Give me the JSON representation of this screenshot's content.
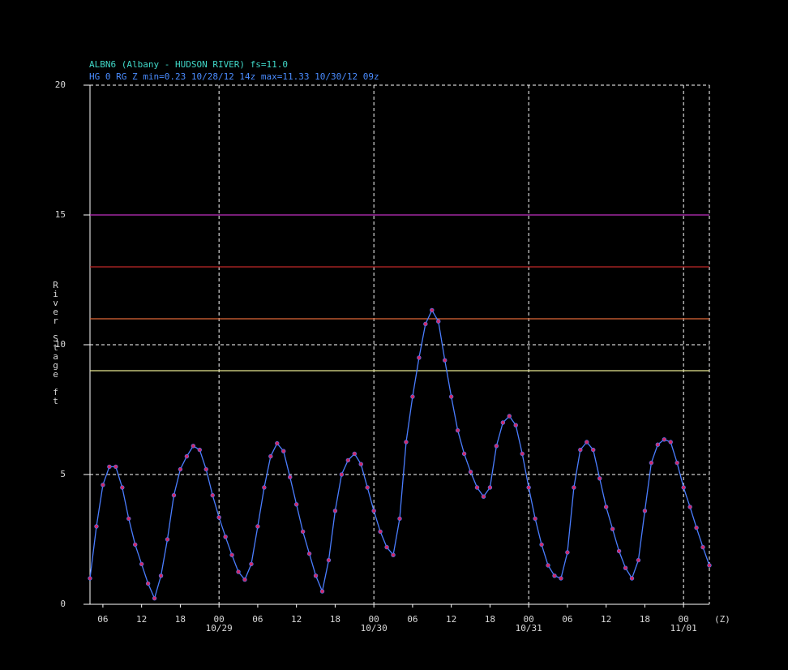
{
  "chart_data": {
    "type": "line",
    "title": "ALBN6 (Albany - HUDSON RIVER) fs=11.0",
    "subtitle": "HG 0 RG Z min=0.23 10/28/12 14z max=11.33 10/30/12 09z",
    "y_label": "River Stage ft",
    "x_unit": "(Z)",
    "xlim": [
      4,
      100
    ],
    "ylim": [
      0,
      20
    ],
    "yticks": [
      0,
      5,
      10,
      15,
      20
    ],
    "xticks": [
      {
        "value": 6,
        "label": "06"
      },
      {
        "value": 12,
        "label": "12"
      },
      {
        "value": 18,
        "label": "18"
      },
      {
        "value": 24,
        "label": "00"
      },
      {
        "value": 30,
        "label": "06"
      },
      {
        "value": 36,
        "label": "12"
      },
      {
        "value": 42,
        "label": "18"
      },
      {
        "value": 48,
        "label": "00"
      },
      {
        "value": 54,
        "label": "06"
      },
      {
        "value": 60,
        "label": "12"
      },
      {
        "value": 66,
        "label": "18"
      },
      {
        "value": 72,
        "label": "00"
      },
      {
        "value": 78,
        "label": "06"
      },
      {
        "value": 84,
        "label": "12"
      },
      {
        "value": 90,
        "label": "18"
      },
      {
        "value": 96,
        "label": "00"
      }
    ],
    "date_labels": [
      {
        "value": 24,
        "label": "10/29"
      },
      {
        "value": 48,
        "label": "10/30"
      },
      {
        "value": 72,
        "label": "10/31"
      },
      {
        "value": 96,
        "label": "11/01"
      }
    ],
    "thresholds": [
      {
        "value": 15,
        "color": "#c030c0"
      },
      {
        "value": 13,
        "color": "#c02828"
      },
      {
        "value": 11,
        "color": "#e06838"
      },
      {
        "value": 9,
        "color": "#e8e890"
      }
    ],
    "grid": true,
    "series": [
      {
        "color": "#4a7dff",
        "marker_color": "#d02a6a",
        "x": [
          4,
          5,
          6,
          7,
          8,
          9,
          10,
          11,
          12,
          13,
          14,
          15,
          16,
          17,
          18,
          19,
          20,
          21,
          22,
          23,
          24,
          25,
          26,
          27,
          28,
          29,
          30,
          31,
          32,
          33,
          34,
          35,
          36,
          37,
          38,
          39,
          40,
          41,
          42,
          43,
          44,
          45,
          46,
          47,
          48,
          49,
          50,
          51,
          52,
          53,
          54,
          55,
          56,
          57,
          58,
          59,
          60,
          61,
          62,
          63,
          64,
          65,
          66,
          67,
          68,
          69,
          70,
          71,
          72,
          73,
          74,
          75,
          76,
          77,
          78,
          79,
          80,
          81,
          82,
          83,
          84,
          85,
          86,
          87,
          88,
          89,
          90,
          91,
          92,
          93,
          94,
          95,
          96,
          97,
          98,
          99,
          100
        ],
        "values": [
          1.0,
          3.0,
          4.6,
          5.3,
          5.3,
          4.5,
          3.3,
          2.3,
          1.55,
          0.8,
          0.23,
          1.1,
          2.5,
          4.2,
          5.2,
          5.7,
          6.1,
          5.95,
          5.2,
          4.2,
          3.35,
          2.6,
          1.9,
          1.25,
          0.95,
          1.55,
          3.0,
          4.5,
          5.7,
          6.2,
          5.9,
          4.9,
          3.85,
          2.8,
          1.95,
          1.1,
          0.5,
          1.7,
          3.6,
          5.0,
          5.55,
          5.8,
          5.4,
          4.5,
          3.6,
          2.8,
          2.2,
          1.9,
          3.3,
          6.25,
          8.0,
          9.5,
          10.8,
          11.33,
          10.9,
          9.4,
          8.0,
          6.7,
          5.8,
          5.1,
          4.5,
          4.15,
          4.5,
          6.1,
          7.0,
          7.25,
          6.9,
          5.8,
          4.5,
          3.3,
          2.3,
          1.5,
          1.1,
          1.0,
          2.0,
          4.5,
          5.95,
          6.25,
          5.95,
          4.85,
          3.75,
          2.9,
          2.05,
          1.4,
          1.0,
          1.7,
          3.6,
          5.45,
          6.15,
          6.35,
          6.25,
          5.45,
          4.5,
          3.75,
          2.95,
          2.2,
          1.5
        ]
      }
    ]
  }
}
